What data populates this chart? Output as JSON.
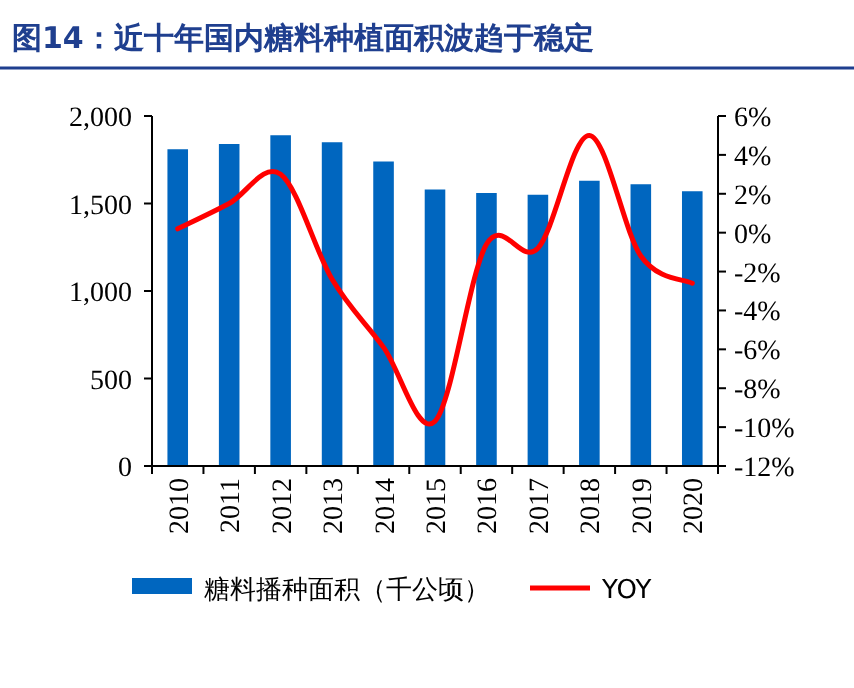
{
  "chart_data": {
    "type": "bar",
    "title": "图14：近十年国内糖料种植面积波趋于稳定",
    "categories": [
      "2010",
      "2011",
      "2012",
      "2013",
      "2014",
      "2015",
      "2016",
      "2017",
      "2018",
      "2019",
      "2020"
    ],
    "series": [
      {
        "name": "糖料播种面积（千公顷）",
        "color": "#0066bf",
        "values": [
          1810,
          1840,
          1890,
          1850,
          1740,
          1580,
          1560,
          1550,
          1630,
          1610,
          1570
        ]
      },
      {
        "name": "YOY",
        "type": "line",
        "axis": "y2",
        "color": "#ff0000",
        "values": [
          0.2,
          1.5,
          3.0,
          -2.4,
          -5.9,
          -9.7,
          -0.6,
          -0.8,
          5.0,
          -1.2,
          -2.6
        ]
      }
    ],
    "ylim": [
      0,
      2000
    ],
    "yticks": [
      0,
      500,
      {
        "value": 1000,
        "label": "1,000"
      },
      {
        "value": 1500,
        "label": "1,500"
      },
      {
        "value": 2000,
        "label": "2,000"
      }
    ],
    "y2lim": [
      -12,
      6
    ],
    "y2ticks": [
      {
        "value": -12,
        "label": "-12%"
      },
      {
        "value": -10,
        "label": "-10%"
      },
      {
        "value": -8,
        "label": "-8%"
      },
      {
        "value": -6,
        "label": "-6%"
      },
      {
        "value": -4,
        "label": "-4%"
      },
      {
        "value": -2,
        "label": "-2%"
      },
      {
        "value": 0,
        "label": "0%"
      },
      {
        "value": 2,
        "label": "2%"
      },
      {
        "value": 4,
        "label": "4%"
      },
      {
        "value": 6,
        "label": "6%"
      }
    ],
    "legend": "bottom",
    "grid": false
  }
}
